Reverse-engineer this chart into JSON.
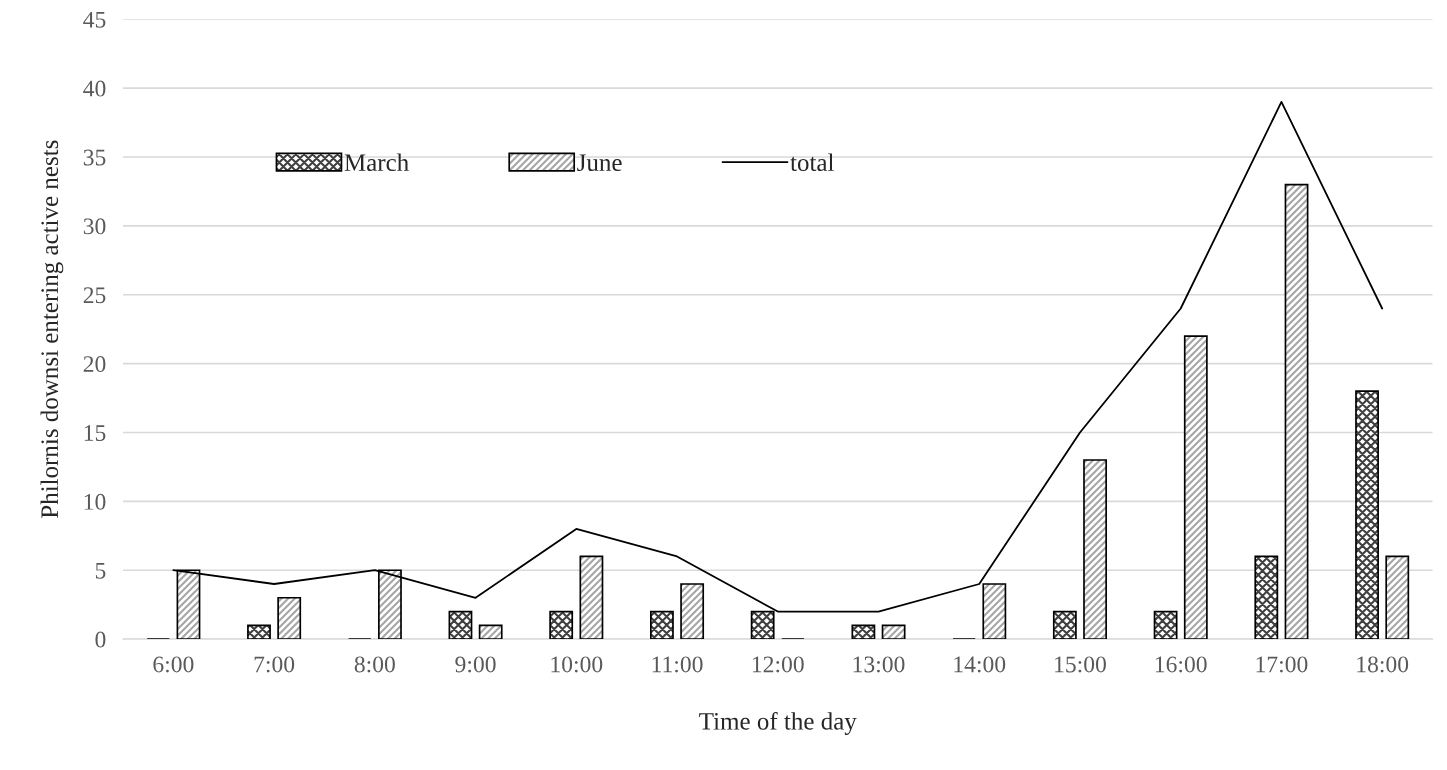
{
  "chart_data": {
    "type": "bar",
    "xlabel": "Time of the day",
    "ylabel": "Philornis downsi entering active nests",
    "categories": [
      "6:00",
      "7:00",
      "8:00",
      "9:00",
      "10:00",
      "11:00",
      "12:00",
      "13:00",
      "14:00",
      "15:00",
      "16:00",
      "17:00",
      "18:00"
    ],
    "series": [
      {
        "name": "March",
        "color": "#000000",
        "values": [
          0,
          1,
          0,
          2,
          2,
          2,
          2,
          1,
          0,
          2,
          2,
          6,
          18
        ]
      },
      {
        "name": "June",
        "color": "#000000",
        "values": [
          5,
          3,
          5,
          1,
          6,
          4,
          0,
          1,
          4,
          13,
          22,
          33,
          6
        ]
      },
      {
        "name": "total",
        "type": "line",
        "color": "#000000",
        "values": [
          5,
          4,
          5,
          3,
          8,
          6,
          2,
          2,
          4,
          15,
          24,
          39,
          24
        ]
      }
    ],
    "ylim": [
      0,
      45
    ],
    "yticks": [
      0,
      5,
      10,
      15,
      20,
      25,
      30,
      35,
      40,
      45
    ],
    "grid": "y",
    "legend": "top left"
  }
}
